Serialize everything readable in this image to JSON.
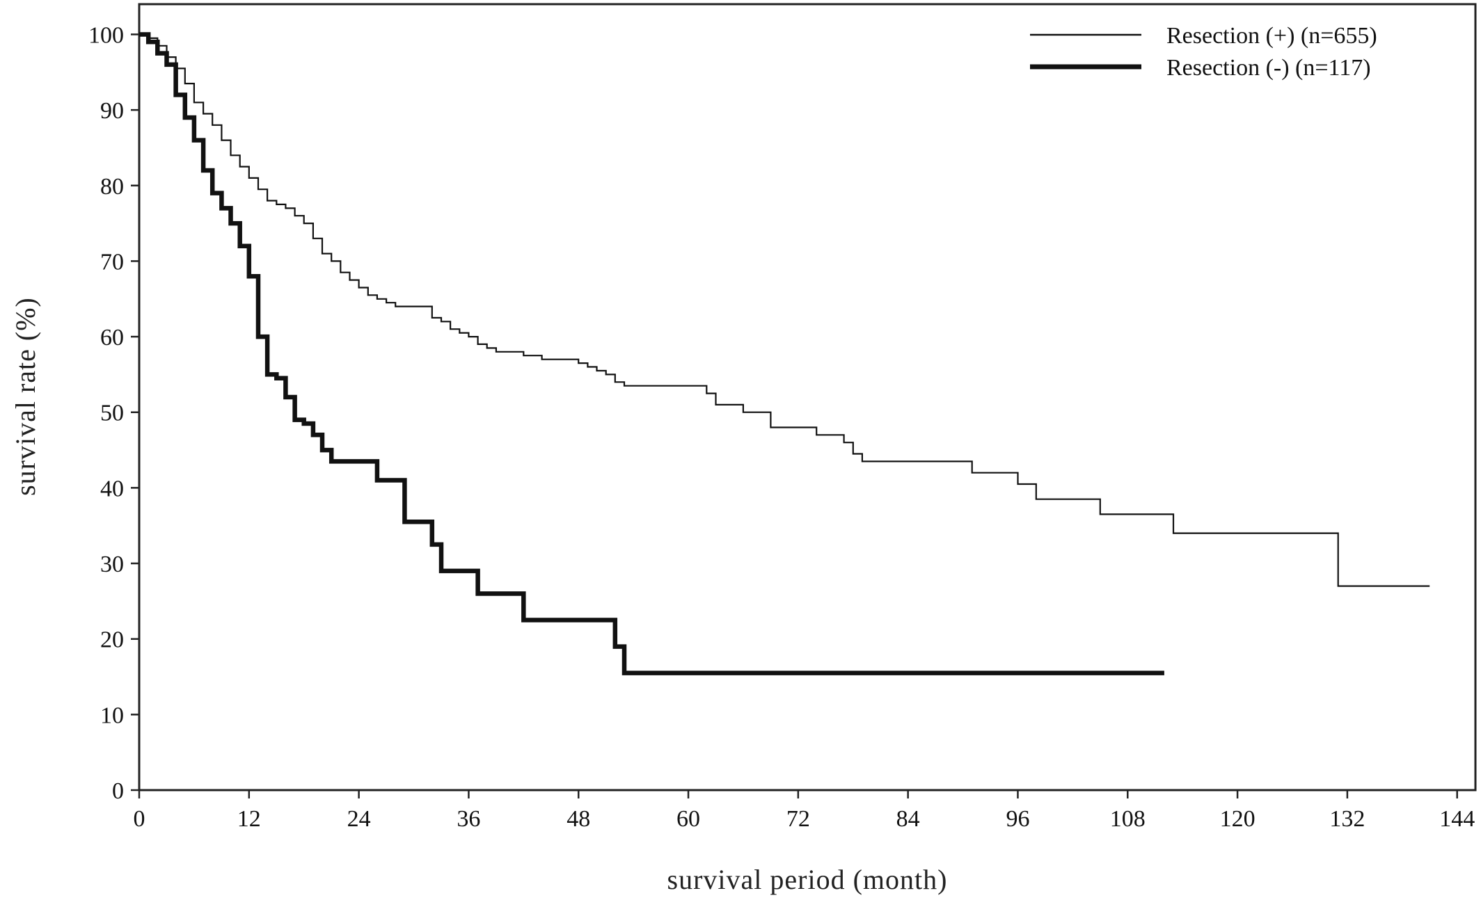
{
  "chart_data": {
    "type": "line",
    "subtype": "kaplan-meier",
    "title": "",
    "xlabel": "survival period (month)",
    "ylabel": "survival rate (%)",
    "xlim": [
      0,
      146
    ],
    "ylim": [
      0,
      104
    ],
    "x_ticks": [
      0,
      12,
      24,
      36,
      48,
      60,
      72,
      84,
      96,
      108,
      120,
      132,
      144
    ],
    "y_ticks": [
      0,
      10,
      20,
      30,
      40,
      50,
      60,
      70,
      80,
      90,
      100
    ],
    "grid": false,
    "legend_position": "top-right",
    "series": [
      {
        "name": "Resection (+) (n=655)",
        "line_width": "thin",
        "color": "#111111",
        "points": [
          [
            0,
            100
          ],
          [
            1,
            99.5
          ],
          [
            2,
            98.5
          ],
          [
            3,
            97
          ],
          [
            4,
            95.5
          ],
          [
            5,
            93.5
          ],
          [
            6,
            91
          ],
          [
            7,
            89.5
          ],
          [
            8,
            88
          ],
          [
            9,
            86
          ],
          [
            10,
            84
          ],
          [
            11,
            82.5
          ],
          [
            12,
            81
          ],
          [
            13,
            79.5
          ],
          [
            14,
            78
          ],
          [
            15,
            77.5
          ],
          [
            16,
            77
          ],
          [
            17,
            76
          ],
          [
            18,
            75
          ],
          [
            19,
            73
          ],
          [
            20,
            71
          ],
          [
            21,
            70
          ],
          [
            22,
            68.5
          ],
          [
            23,
            67.5
          ],
          [
            24,
            66.5
          ],
          [
            25,
            65.5
          ],
          [
            26,
            65
          ],
          [
            27,
            64.5
          ],
          [
            28,
            64
          ],
          [
            31,
            64
          ],
          [
            32,
            62.5
          ],
          [
            33,
            62
          ],
          [
            34,
            61
          ],
          [
            35,
            60.5
          ],
          [
            36,
            60
          ],
          [
            37,
            59
          ],
          [
            38,
            58.5
          ],
          [
            39,
            58
          ],
          [
            41,
            58
          ],
          [
            42,
            57.5
          ],
          [
            44,
            57
          ],
          [
            47,
            57
          ],
          [
            48,
            56.5
          ],
          [
            49,
            56
          ],
          [
            50,
            55.5
          ],
          [
            51,
            55
          ],
          [
            52,
            54
          ],
          [
            53,
            53.5
          ],
          [
            61,
            53.5
          ],
          [
            62,
            52.5
          ],
          [
            63,
            51
          ],
          [
            65,
            51
          ],
          [
            66,
            50
          ],
          [
            68,
            50
          ],
          [
            69,
            48
          ],
          [
            73,
            48
          ],
          [
            74,
            47
          ],
          [
            76,
            47
          ],
          [
            77,
            46
          ],
          [
            78,
            44.5
          ],
          [
            79,
            43.5
          ],
          [
            90,
            43.5
          ],
          [
            91,
            42
          ],
          [
            95,
            42
          ],
          [
            96,
            40.5
          ],
          [
            98,
            38.5
          ],
          [
            104,
            38.5
          ],
          [
            105,
            36.5
          ],
          [
            112,
            36.5
          ],
          [
            113,
            34
          ],
          [
            130,
            34
          ],
          [
            131,
            27
          ],
          [
            141,
            27
          ]
        ]
      },
      {
        "name": "Resection (-) (n=117)",
        "line_width": "thick",
        "color": "#111111",
        "points": [
          [
            0,
            100
          ],
          [
            1,
            99
          ],
          [
            2,
            97.5
          ],
          [
            3,
            96
          ],
          [
            4,
            92
          ],
          [
            5,
            89
          ],
          [
            6,
            86
          ],
          [
            7,
            82
          ],
          [
            8,
            79
          ],
          [
            9,
            77
          ],
          [
            10,
            75
          ],
          [
            11,
            72
          ],
          [
            12,
            68
          ],
          [
            13,
            60
          ],
          [
            14,
            55
          ],
          [
            15,
            54.5
          ],
          [
            16,
            52
          ],
          [
            17,
            49
          ],
          [
            18,
            48.5
          ],
          [
            19,
            47
          ],
          [
            20,
            45
          ],
          [
            21,
            43.5
          ],
          [
            25,
            43.5
          ],
          [
            26,
            41
          ],
          [
            28,
            41
          ],
          [
            29,
            35.5
          ],
          [
            31,
            35.5
          ],
          [
            32,
            32.5
          ],
          [
            33,
            29
          ],
          [
            36,
            29
          ],
          [
            37,
            26
          ],
          [
            41,
            26
          ],
          [
            42,
            22.5
          ],
          [
            51,
            22.5
          ],
          [
            52,
            19
          ],
          [
            53,
            15.5
          ],
          [
            112,
            15.5
          ]
        ]
      }
    ]
  }
}
